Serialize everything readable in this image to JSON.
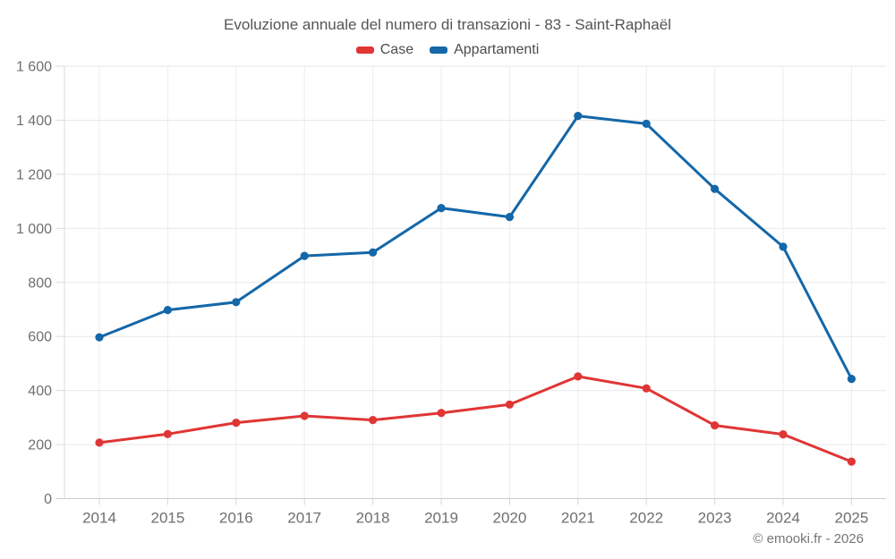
{
  "chart_data": {
    "type": "line",
    "title": "Evoluzione annuale del numero di transazioni - 83 - Saint-Raphaël",
    "categories": [
      "2014",
      "2015",
      "2016",
      "2017",
      "2018",
      "2019",
      "2020",
      "2021",
      "2022",
      "2023",
      "2024",
      "2025"
    ],
    "series": [
      {
        "name": "Case",
        "color": "#e03535",
        "values": [
          207,
          239,
          281,
          306,
          291,
          317,
          348,
          452,
          408,
          271,
          238,
          137
        ]
      },
      {
        "name": "Appartamenti",
        "color": "#1467a8",
        "values": [
          597,
          698,
          727,
          898,
          911,
          1075,
          1042,
          1416,
          1387,
          1146,
          932,
          443
        ]
      }
    ],
    "xlabel": "",
    "ylabel": "",
    "ylim": [
      0,
      1600
    ],
    "ytick_step": 200,
    "ytick_labels": [
      "0",
      "200",
      "400",
      "600",
      "800",
      "1 000",
      "1 200",
      "1 400",
      "1 600"
    ],
    "grid": true,
    "legend_position": "top"
  },
  "footer": {
    "copyright": "© emooki.fr - 2026"
  }
}
